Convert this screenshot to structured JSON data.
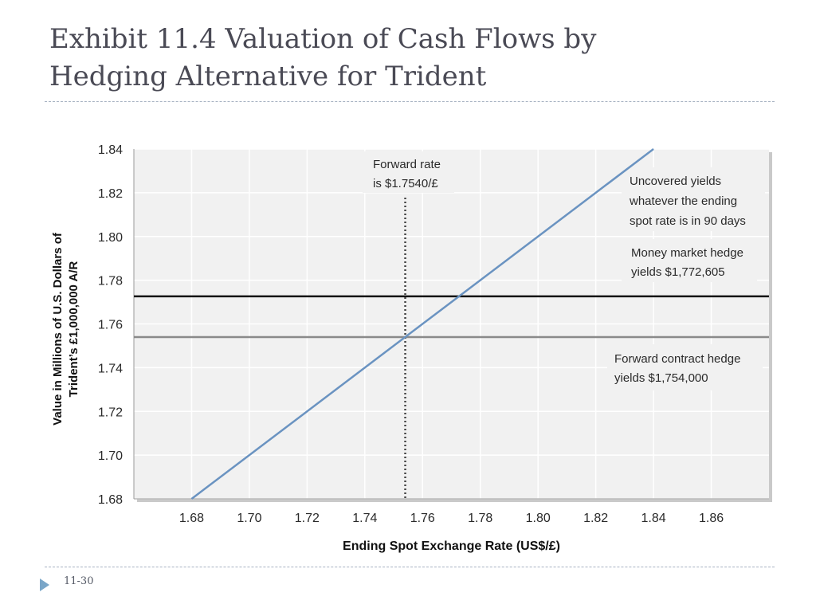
{
  "slide": {
    "title_line1": "Exhibit 11.4  Valuation of Cash Flows by",
    "title_line2": "Hedging Alternative for Trident",
    "page_number": "11-30"
  },
  "chart_data": {
    "type": "line",
    "title": "",
    "xlabel": "Ending Spot Exchange Rate (US$/£)",
    "ylabel_line1": "Value in Millions of U.S. Dollars of",
    "ylabel_line2": "Trident’s £1,000,000 A/R",
    "xlim": [
      1.66,
      1.88
    ],
    "ylim": [
      1.68,
      1.84
    ],
    "x_ticks": [
      1.68,
      1.7,
      1.72,
      1.74,
      1.76,
      1.78,
      1.8,
      1.82,
      1.84,
      1.86
    ],
    "x_tick_labels": [
      "1.68",
      "1.70",
      "1.72",
      "1.74",
      "1.76",
      "1.78",
      "1.80",
      "1.82",
      "1.84",
      "1.86"
    ],
    "y_ticks": [
      1.68,
      1.7,
      1.72,
      1.74,
      1.76,
      1.78,
      1.8,
      1.82,
      1.84
    ],
    "y_tick_labels": [
      "1.68",
      "1.70",
      "1.72",
      "1.74",
      "1.76",
      "1.78",
      "1.80",
      "1.82",
      "1.84"
    ],
    "grid": true,
    "series": [
      {
        "key": "uncovered",
        "x": [
          1.68,
          1.84
        ],
        "y": [
          1.68,
          1.84
        ],
        "color": "#6a93c1"
      },
      {
        "key": "money_market_hedge",
        "x": [
          1.66,
          1.88
        ],
        "y": [
          1.772605,
          1.772605
        ],
        "color": "#111111"
      },
      {
        "key": "forward_contract_hedge",
        "x": [
          1.66,
          1.88
        ],
        "y": [
          1.754,
          1.754
        ],
        "color": "#8a8a8a"
      }
    ],
    "forward_rate_marker": {
      "x": 1.754
    },
    "annotations": {
      "forward_rate": [
        "Forward rate",
        "is $1.7540/£"
      ],
      "uncovered": [
        "Uncovered yields",
        "whatever the ending",
        "spot rate is in 90 days"
      ],
      "money_market": [
        "Money market hedge",
        "yields $1,772,605"
      ],
      "forward_contract": [
        "Forward contract hedge",
        "yields $1,754,000"
      ]
    },
    "colors": {
      "plot_background": "#f1f1f1",
      "grid": "#ffffff",
      "tick_label": "#2a2a2a",
      "annotation": "#2a2a2a"
    }
  }
}
